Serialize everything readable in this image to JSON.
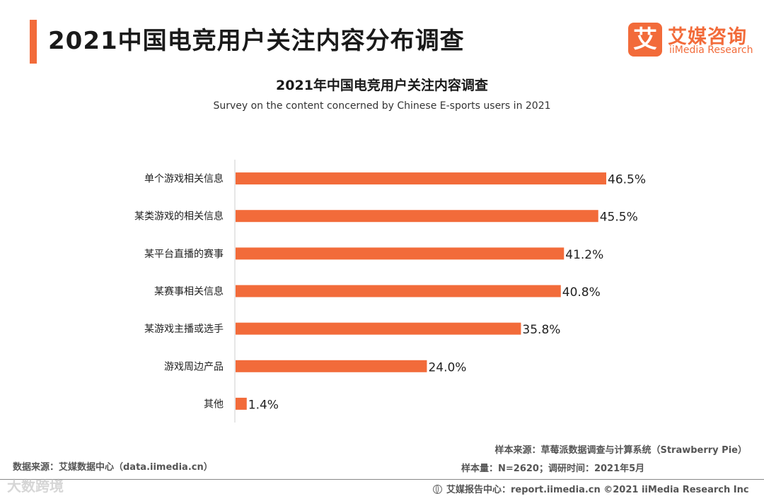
{
  "header": {
    "title": "2021中国电竞用户关注内容分布调查"
  },
  "logo": {
    "mark": "艾",
    "name": "艾媒咨询",
    "en": "iiMedia Research"
  },
  "colors": {
    "accent": "#f26b3a",
    "bar": "#f26b3a",
    "axis": "#cccccc"
  },
  "chart_data": {
    "type": "bar",
    "orientation": "horizontal",
    "title": "2021年中国电竞用户关注内容调查",
    "subtitle": "Survey on the content concerned by Chinese E-sports users in 2021",
    "categories": [
      "单个游戏相关信息",
      "某类游戏的相关信息",
      "某平台直播的赛事",
      "某赛事相关信息",
      "某游戏主播或选手",
      "游戏周边产品",
      "其他"
    ],
    "values": [
      46.5,
      45.5,
      41.2,
      40.8,
      35.8,
      24.0,
      1.4
    ],
    "labels": [
      "46.5%",
      "45.5%",
      "41.2%",
      "40.8%",
      "35.8%",
      "24.0%",
      "1.4%"
    ],
    "unit": "%",
    "xlim": [
      0,
      50
    ]
  },
  "footer": {
    "data_source": "数据来源：艾媒数据中心（data.iimedia.cn）",
    "sample_source": "样本来源：草莓派数据调查与计算系统（Strawberry Pie）",
    "sample_info": "样本量：N=2620；调研时间：2021年5月",
    "report_center": "艾媒报告中心：report.iimedia.cn ©2021  iiMedia Research  Inc"
  },
  "watermark": "大数跨境"
}
